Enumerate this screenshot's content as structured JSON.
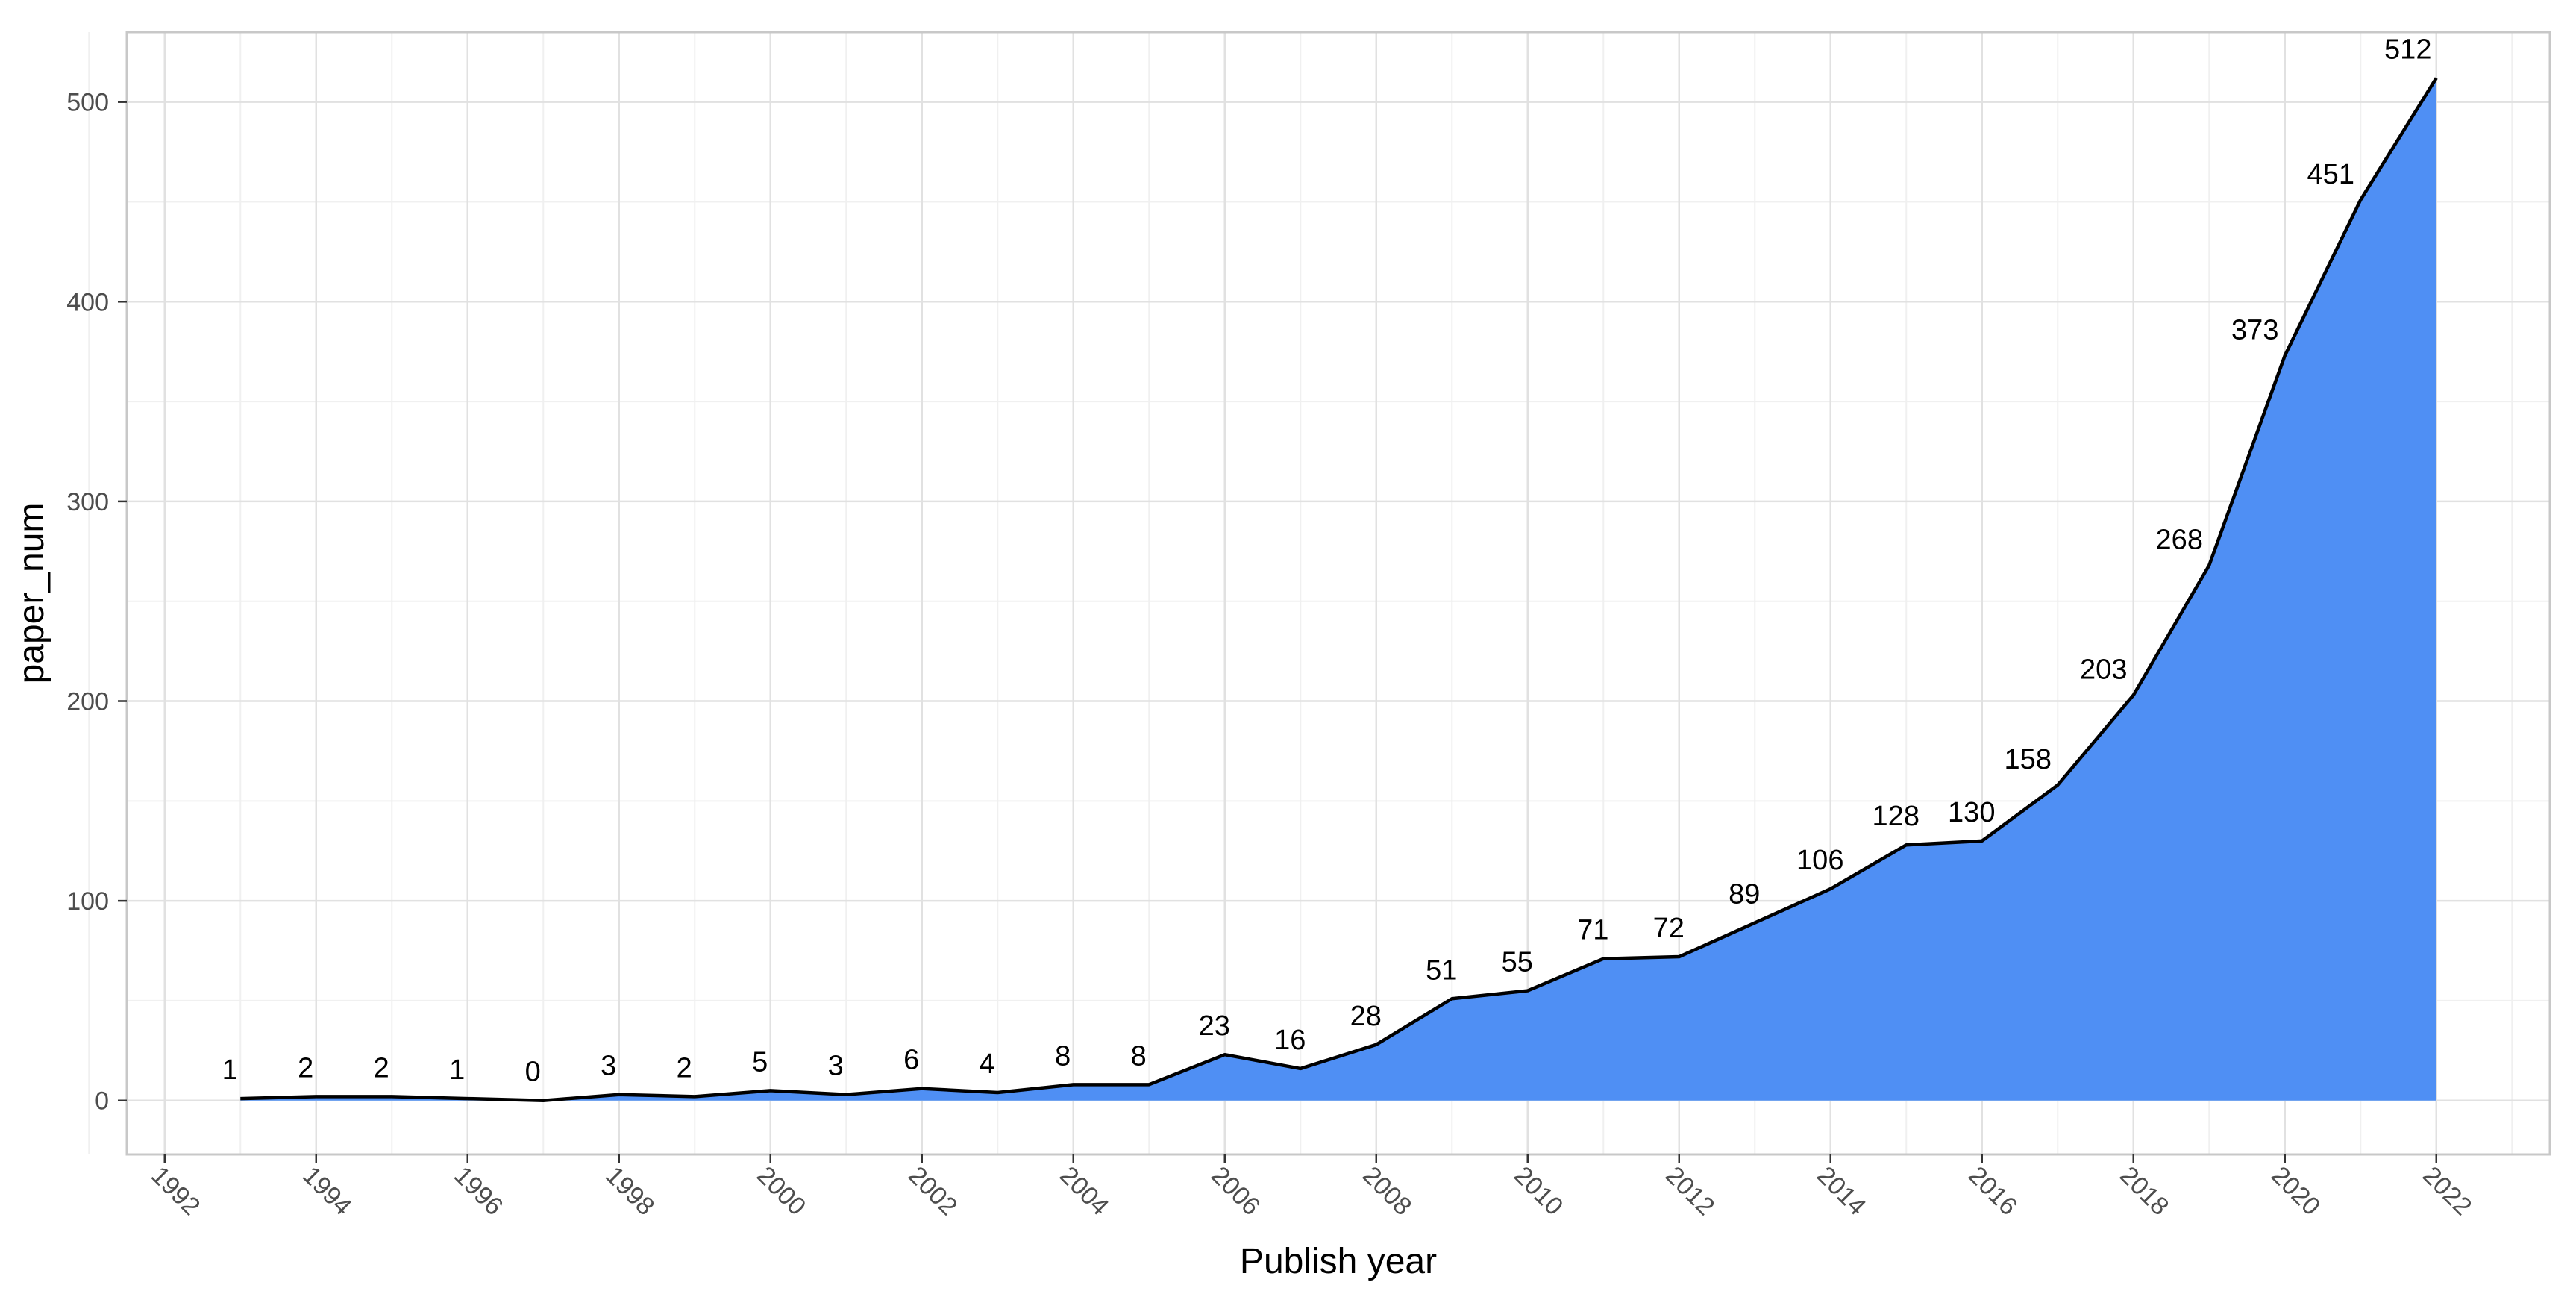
{
  "chart_data": {
    "type": "area",
    "title": "",
    "xlabel": "Publish year",
    "ylabel": "paper_num",
    "xlim": [
      1991.5,
      2023.5
    ],
    "ylim": [
      -27,
      535
    ],
    "x_ticks": [
      1992,
      1994,
      1996,
      1998,
      2000,
      2002,
      2004,
      2006,
      2008,
      2010,
      2012,
      2014,
      2016,
      2018,
      2020,
      2022
    ],
    "y_ticks": [
      0,
      100,
      200,
      300,
      400,
      500
    ],
    "grid": true,
    "legend": "none",
    "colors": {
      "fill": "#4f8ff4",
      "line": "#000000",
      "grid_major": "#e1e1e1",
      "grid_minor": "#f0f0f0",
      "panel_border": "#c8c8c8",
      "tick_label": "#4d4d4d"
    },
    "points": [
      {
        "x": 1993,
        "y": 1
      },
      {
        "x": 1994,
        "y": 2
      },
      {
        "x": 1995,
        "y": 2
      },
      {
        "x": 1996,
        "y": 1
      },
      {
        "x": 1997,
        "y": 0
      },
      {
        "x": 1998,
        "y": 3
      },
      {
        "x": 1999,
        "y": 2
      },
      {
        "x": 2000,
        "y": 5
      },
      {
        "x": 2001,
        "y": 3
      },
      {
        "x": 2002,
        "y": 6
      },
      {
        "x": 2003,
        "y": 4
      },
      {
        "x": 2004,
        "y": 8
      },
      {
        "x": 2005,
        "y": 8
      },
      {
        "x": 2006,
        "y": 23
      },
      {
        "x": 2007,
        "y": 16
      },
      {
        "x": 2008,
        "y": 28
      },
      {
        "x": 2009,
        "y": 51
      },
      {
        "x": 2010,
        "y": 55
      },
      {
        "x": 2011,
        "y": 71
      },
      {
        "x": 2012,
        "y": 72
      },
      {
        "x": 2013,
        "y": 89
      },
      {
        "x": 2014,
        "y": 106
      },
      {
        "x": 2015,
        "y": 128
      },
      {
        "x": 2016,
        "y": 130
      },
      {
        "x": 2017,
        "y": 158
      },
      {
        "x": 2018,
        "y": 203
      },
      {
        "x": 2019,
        "y": 268
      },
      {
        "x": 2020,
        "y": 373
      },
      {
        "x": 2021,
        "y": 451
      },
      {
        "x": 2022,
        "y": 512
      }
    ]
  }
}
